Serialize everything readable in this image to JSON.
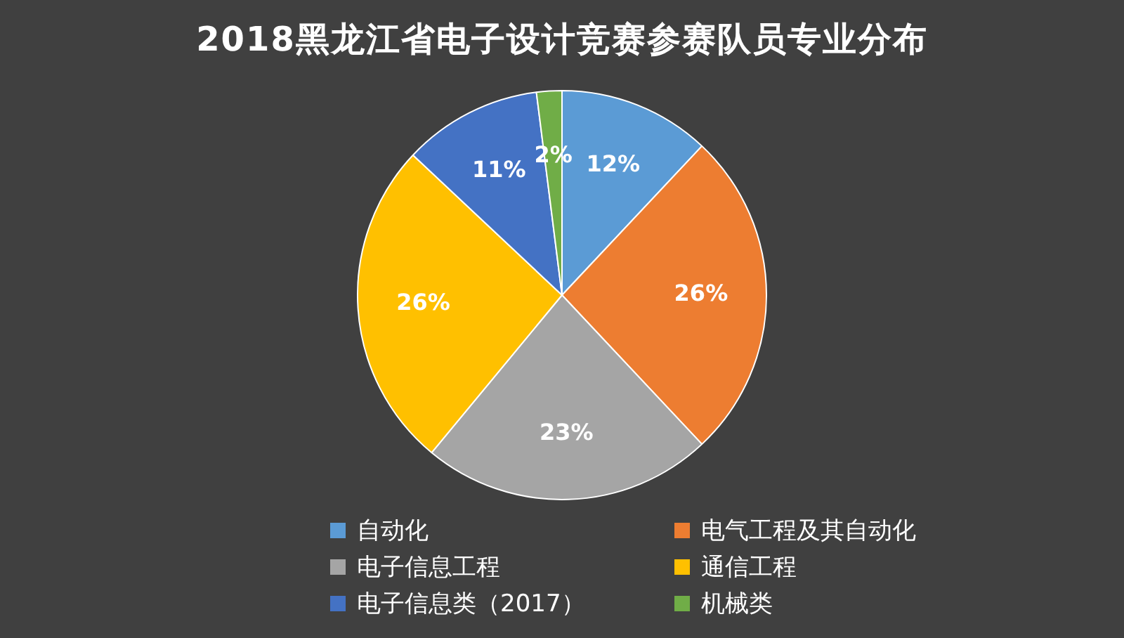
{
  "chart_data": {
    "type": "pie",
    "title": "2018黑龙江省电子设计竞赛参赛队员专业分布",
    "categories": [
      "自动化",
      "电气工程及其自动化",
      "电子信息工程",
      "通信工程",
      "电子信息类（2017）",
      "机械类"
    ],
    "values": [
      12,
      26,
      23,
      26,
      11,
      2
    ],
    "colors": [
      "#5b9bd5",
      "#ed7d31",
      "#a5a5a5",
      "#ffc000",
      "#4472c4",
      "#70ad47"
    ],
    "value_labels": [
      "12%",
      "26%",
      "23%",
      "26%",
      "11%",
      "2%"
    ],
    "legend": "bottom"
  }
}
